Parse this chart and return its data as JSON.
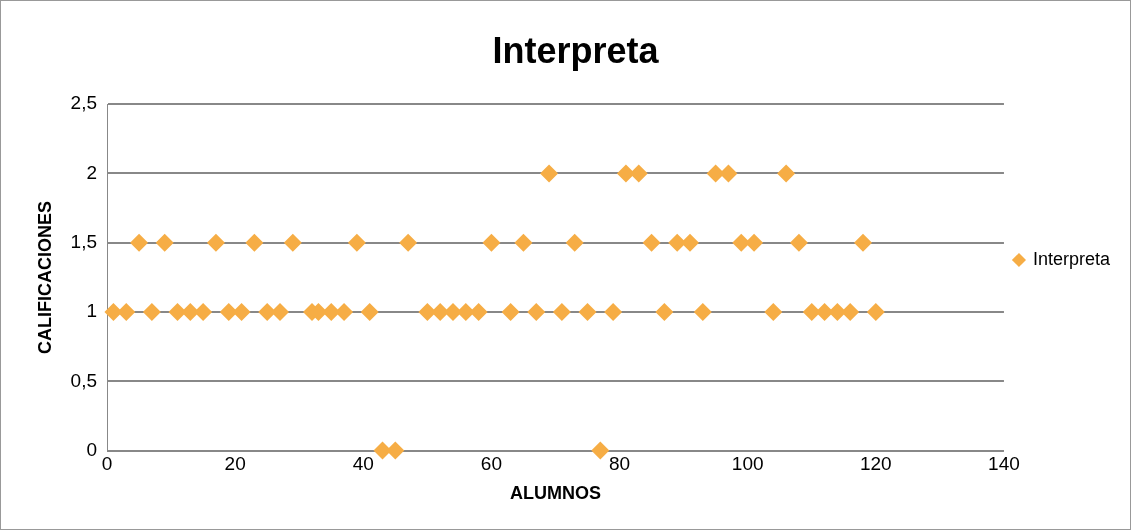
{
  "chart_data": {
    "type": "scatter",
    "title": "Interpreta",
    "xlabel": "ALUMNOS",
    "ylabel": "CALIFICACIONES",
    "series": [
      {
        "name": "Interpreta",
        "color": "#f6ad45",
        "x": [
          1,
          3,
          5,
          7,
          9,
          11,
          13,
          15,
          17,
          19,
          21,
          23,
          25,
          27,
          29,
          32,
          33,
          35,
          37,
          39,
          41,
          43,
          45,
          47,
          50,
          52,
          54,
          56,
          58,
          60,
          63,
          65,
          67,
          69,
          71,
          73,
          75,
          77,
          79,
          81,
          83,
          85,
          87,
          89,
          91,
          93,
          95,
          97,
          99,
          101,
          104,
          106,
          108,
          110,
          112,
          114,
          116,
          118,
          120
        ],
        "values": [
          1,
          1,
          1.5,
          1,
          1.5,
          1,
          1,
          1,
          1.5,
          1,
          1,
          1.5,
          1,
          1,
          1.5,
          1,
          1,
          1,
          1,
          1.5,
          1,
          0,
          0,
          1.5,
          1,
          1,
          1,
          1,
          1,
          1.5,
          1,
          1.5,
          1,
          2,
          1,
          1.5,
          1,
          0,
          1,
          2,
          2,
          1.5,
          1,
          1.5,
          1.5,
          1,
          2,
          2,
          1.5,
          1.5,
          1,
          2,
          1.5,
          1,
          1,
          1,
          1,
          1.5,
          1
        ]
      }
    ],
    "xlim": [
      0,
      140
    ],
    "xticks": [
      0,
      20,
      40,
      60,
      80,
      100,
      120,
      140
    ],
    "ylim": [
      0,
      2.5
    ],
    "yticks": [
      0,
      {
        "value": 0.5,
        "label": "0,5"
      },
      1,
      {
        "value": 1.5,
        "label": "1,5"
      },
      2,
      {
        "value": 2.5,
        "label": "2,5"
      }
    ],
    "grid": "y",
    "legend": "right",
    "marker": "diamond"
  }
}
